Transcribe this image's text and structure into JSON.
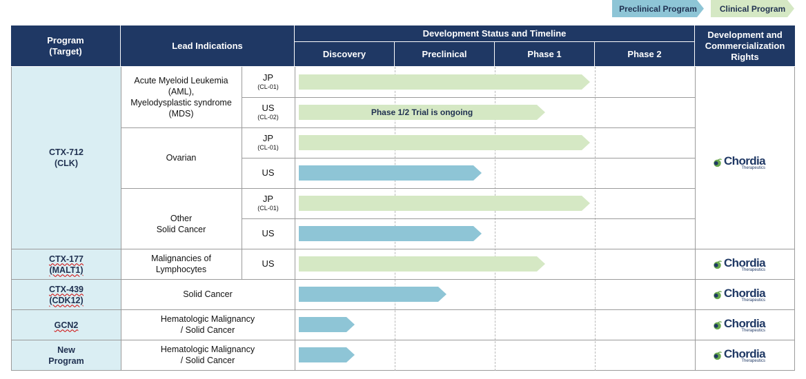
{
  "legend": {
    "preclinical": "Preclinical Program",
    "clinical": "Clinical Program"
  },
  "colors": {
    "preclinical": "#8ec5d6",
    "clinical": "#d5e8c4",
    "header": "#1f3864",
    "program_cell": "#daeef3"
  },
  "header": {
    "program": [
      "Program",
      "(Target)"
    ],
    "lead_indications": "Lead Indications",
    "timeline": "Development Status and Timeline",
    "stages": [
      "Discovery",
      "Preclinical",
      "Phase 1",
      "Phase 2"
    ],
    "rights": [
      "Development and",
      "Commercialization",
      "Rights"
    ]
  },
  "programs": [
    {
      "name": [
        "CTX-712",
        "(CLK)"
      ]
    },
    {
      "name": [
        "CTX-177",
        "(MALT1)"
      ]
    },
    {
      "name": [
        "CTX-439",
        "(CDK12)"
      ]
    },
    {
      "name": [
        "GCN2"
      ]
    },
    {
      "name": [
        "New",
        "Program"
      ]
    }
  ],
  "indications": {
    "aml": [
      "Acute Myeloid Leukemia",
      "(AML),",
      "Myelodysplastic syndrome",
      "(MDS)"
    ],
    "ovarian": "Ovarian",
    "other": [
      "Other",
      "Solid Cancer"
    ],
    "lymph": [
      "Malignancies of",
      "Lymphocytes"
    ],
    "solid": "Solid Cancer",
    "heme1": [
      "Hematologic Malignancy",
      "/ Solid Cancer"
    ],
    "heme2": [
      "Hematologic Malignancy",
      "/ Solid Cancer"
    ]
  },
  "regions": [
    {
      "name": "JP",
      "code": "(CL-01)"
    },
    {
      "name": "US",
      "code": "(CL-02)"
    },
    {
      "name": "JP",
      "code": "(CL-01)"
    },
    {
      "name": "US",
      "code": ""
    },
    {
      "name": "JP",
      "code": "(CL-01)"
    },
    {
      "name": "US",
      "code": ""
    },
    {
      "name": "US",
      "code": ""
    }
  ],
  "bars": [
    {
      "type": "clinical",
      "progress": 0.985,
      "label": ""
    },
    {
      "type": "clinical",
      "progress": 0.835,
      "label": "Phase 1/2 Trial is ongoing"
    },
    {
      "type": "clinical",
      "progress": 0.985,
      "label": ""
    },
    {
      "type": "preclinical",
      "progress": 0.62,
      "label": ""
    },
    {
      "type": "clinical",
      "progress": 0.985,
      "label": ""
    },
    {
      "type": "preclinical",
      "progress": 0.62,
      "label": ""
    },
    {
      "type": "clinical",
      "progress": 0.835,
      "label": ""
    },
    {
      "type": "preclinical",
      "progress": 0.5,
      "label": ""
    },
    {
      "type": "preclinical",
      "progress": 0.19,
      "label": ""
    },
    {
      "type": "preclinical",
      "progress": 0.19,
      "label": ""
    }
  ],
  "logo": {
    "name": "Chordia",
    "tagline": "Therapeutics"
  }
}
